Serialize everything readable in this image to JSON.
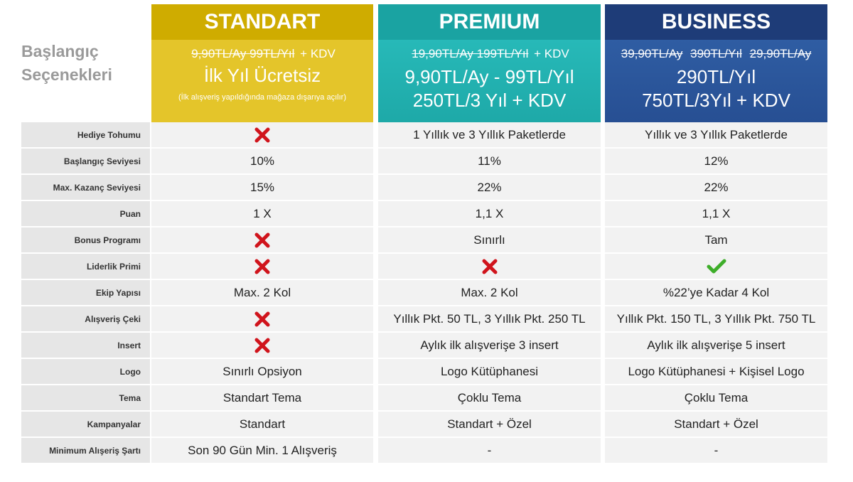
{
  "title": "Başlangıç Seçenekleri",
  "plans": [
    {
      "name": "STANDART",
      "old_prices": [
        "9,90TL/Ay 99TL/Yıl"
      ],
      "old_suffix": "+ KDV",
      "price_lines": [
        "İlk Yıl Ücretsiz"
      ],
      "note": "(İlk alışveriş yapıldığında mağaza dışarıya açılır)"
    },
    {
      "name": "PREMIUM",
      "old_prices": [
        "19,90TL/Ay 199TL/Yıl"
      ],
      "old_suffix": "+ KDV",
      "price_lines": [
        "9,90TL/Ay - 99TL/Yıl",
        "250TL/3 Yıl + KDV"
      ]
    },
    {
      "name": "BUSINESS",
      "old_prices": [
        "39,90TL/Ay",
        "390TL/Yıl",
        "29,90TL/Ay"
      ],
      "price_lines": [
        "290TL/Yıl",
        "750TL/3Yıl + KDV"
      ]
    }
  ],
  "rows": [
    {
      "label": "Hediye Tohumu",
      "premium": "1 Yıllık ve 3 Yıllık Paketlerde",
      "business": "Yıllık ve 3 Yıllık Paketlerde"
    },
    {
      "label": "Başlangıç Seviyesi",
      "standart": "10%",
      "premium": "11%",
      "business": "12%"
    },
    {
      "label": "Max. Kazanç Seviyesi",
      "standart": "15%",
      "premium": "22%",
      "business": "22%"
    },
    {
      "label": "Puan",
      "standart": "1 X",
      "premium": "1,1 X",
      "business": "1,1 X"
    },
    {
      "label": "Bonus Programı",
      "premium": "Sınırlı",
      "business": "Tam"
    },
    {
      "label": "Liderlik Primi"
    },
    {
      "label": "Ekip Yapısı",
      "standart": "Max. 2 Kol",
      "premium": "Max. 2 Kol",
      "business": "%22’ye Kadar 4 Kol"
    },
    {
      "label": "Alışveriş Çeki",
      "premium": "Yıllık Pkt. 50 TL, 3 Yıllık Pkt. 250 TL",
      "business": "Yıllık Pkt. 150 TL, 3 Yıllık Pkt. 750 TL"
    },
    {
      "label": "Insert",
      "premium": "Aylık ilk alışverişe 3 insert",
      "business": "Aylık ilk alışverişe 5 insert"
    },
    {
      "label": "Logo",
      "standart": "Sınırlı Opsiyon",
      "premium": "Logo Kütüphanesi",
      "business": "Logo Kütüphanesi + Kişisel Logo"
    },
    {
      "label": "Tema",
      "standart": "Standart Tema",
      "premium": "Çoklu Tema",
      "business": "Çoklu Tema"
    },
    {
      "label": "Kampanyalar",
      "standart": "Standart",
      "premium": "Standart + Özel",
      "business": "Standart + Özel"
    },
    {
      "label": "Minimum Alışeriş Şartı",
      "standart": "Son 90 Gün Min. 1 Alışveriş",
      "premium": "-",
      "business": "-"
    }
  ]
}
